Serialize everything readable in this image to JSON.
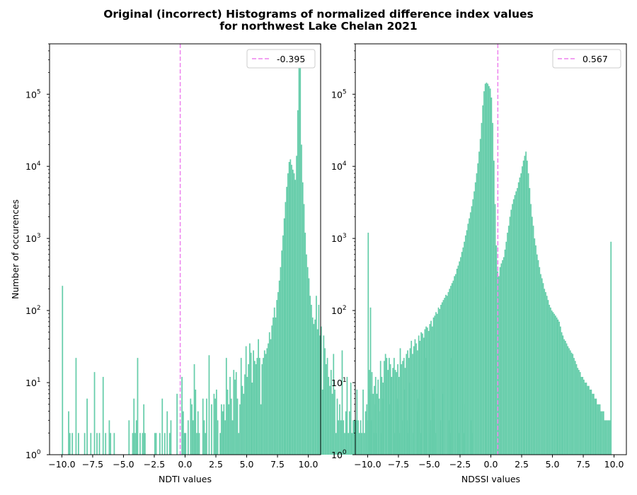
{
  "title_line1": "Original (incorrect) Histograms of normalized difference index values",
  "title_line2": "for northwest Lake Chelan 2021",
  "colors": {
    "bar": "#66cdaa",
    "mean_line": "#ee82ee",
    "axis": "#000000"
  },
  "chart_data": [
    {
      "type": "bar",
      "subtype": "histogram",
      "xlabel": "NDTI values",
      "ylabel": "Number of occurences",
      "xlim": [
        -11,
        11
      ],
      "ylim": [
        1,
        500000
      ],
      "yscale": "log",
      "xticks": [
        -10.0,
        -7.5,
        -5.0,
        -2.5,
        0.0,
        2.5,
        5.0,
        7.5,
        10.0
      ],
      "xtick_labels": [
        "−10.0",
        "−7.5",
        "−5.0",
        "−2.5",
        "0.0",
        "2.5",
        "5.0",
        "7.5",
        "10.0"
      ],
      "yticks": [
        1,
        10,
        100,
        1000,
        10000,
        100000
      ],
      "ytick_base": "10",
      "ytick_exponents": [
        "0",
        "1",
        "2",
        "3",
        "4",
        "5"
      ],
      "bin_width": 0.1,
      "bin_start": -10.0,
      "mean_line": {
        "x": -0.395,
        "label": "-0.395"
      },
      "legend_position": "upper right",
      "grid": false,
      "counts": [
        220,
        0,
        0,
        0,
        0,
        4,
        2,
        0,
        2,
        0,
        0,
        22,
        0,
        2,
        0,
        0,
        0,
        0,
        2,
        0,
        6,
        0,
        0,
        2,
        0,
        0,
        14,
        0,
        2,
        0,
        2,
        0,
        0,
        12,
        0,
        2,
        0,
        0,
        3,
        2,
        0,
        0,
        2,
        0,
        0,
        0,
        0,
        0,
        0,
        0,
        0,
        0,
        0,
        0,
        3,
        0,
        0,
        2,
        6,
        2,
        3,
        22,
        0,
        2,
        0,
        2,
        5,
        2,
        0,
        0,
        0,
        0,
        0,
        0,
        0,
        2,
        2,
        0,
        0,
        2,
        0,
        6,
        0,
        2,
        0,
        4,
        0,
        2,
        3,
        0,
        0,
        0,
        0,
        7,
        0,
        0,
        0,
        12,
        4,
        2,
        2,
        0,
        3,
        0,
        6,
        5,
        3,
        18,
        8,
        2,
        4,
        2,
        0,
        0,
        6,
        3,
        2,
        6,
        0,
        24,
        0,
        5,
        0,
        7,
        6,
        8,
        3,
        0,
        2,
        5,
        4,
        5,
        3,
        22,
        8,
        5,
        12,
        6,
        3,
        15,
        11,
        14,
        6,
        2,
        5,
        22,
        9,
        7,
        13,
        32,
        12,
        18,
        35,
        26,
        10,
        28,
        20,
        18,
        22,
        40,
        22,
        5,
        18,
        22,
        28,
        25,
        30,
        35,
        50,
        40,
        62,
        80,
        110,
        80,
        140,
        180,
        260,
        400,
        680,
        1100,
        1900,
        3200,
        5200,
        8000,
        11500,
        12500,
        10500,
        9000,
        8000,
        6500,
        14000,
        60000,
        320000,
        360000,
        20000,
        6000,
        3000,
        1200,
        600,
        400,
        280,
        160,
        120,
        80,
        65,
        75,
        160,
        55,
        120,
        45,
        60,
        8,
        45,
        30,
        18,
        22,
        12,
        9,
        15,
        7,
        25,
        8,
        2,
        6,
        3,
        5,
        3,
        28,
        3,
        2,
        4,
        12,
        2,
        4,
        10,
        2,
        3,
        3,
        3,
        8,
        3,
        2,
        3,
        2,
        8,
        2,
        4,
        5,
        3,
        8,
        110,
        3,
        0,
        2,
        5,
        2,
        0,
        6,
        0,
        2,
        6,
        6,
        0,
        0,
        0,
        2,
        5,
        3,
        0,
        3,
        2,
        0,
        6,
        5,
        2,
        0,
        3,
        0,
        8,
        0,
        3,
        2,
        10,
        0,
        0,
        2,
        0,
        0,
        4,
        6,
        0,
        2,
        8,
        0,
        0,
        22,
        2,
        0,
        2,
        3,
        0,
        8,
        6,
        2,
        0,
        0,
        0,
        3,
        0,
        7,
        0,
        0,
        0,
        0,
        3,
        2,
        22,
        0,
        0,
        2,
        0,
        0,
        2,
        0,
        0,
        0,
        2,
        5,
        0,
        0,
        0,
        0,
        3,
        2,
        0,
        0,
        0,
        0,
        0,
        0,
        0,
        0,
        0,
        0,
        215
      ]
    },
    {
      "type": "bar",
      "subtype": "histogram",
      "xlabel": "NDSSI values",
      "ylabel": "",
      "xlim": [
        -11,
        11
      ],
      "ylim": [
        1,
        500000
      ],
      "yscale": "log",
      "xticks": [
        -10.0,
        -7.5,
        -5.0,
        -2.5,
        0.0,
        2.5,
        5.0,
        7.5,
        10.0
      ],
      "xtick_labels": [
        "−10.0",
        "−7.5",
        "−5.0",
        "−2.5",
        "0.0",
        "2.5",
        "5.0",
        "7.5",
        "10.0"
      ],
      "yticks": [
        1,
        10,
        100,
        1000,
        10000,
        100000
      ],
      "ytick_base": "10",
      "ytick_exponents": [
        "0",
        "1",
        "2",
        "3",
        "4",
        "5"
      ],
      "bin_width": 0.1,
      "bin_start": -10.0,
      "mean_line": {
        "x": 0.567,
        "label": "0.567"
      },
      "legend_position": "upper right",
      "grid": false,
      "counts": [
        1200,
        15,
        7,
        14,
        7,
        9,
        12,
        7,
        11,
        4,
        20,
        12,
        10,
        20,
        25,
        22,
        15,
        22,
        18,
        12,
        16,
        22,
        15,
        14,
        18,
        12,
        30,
        18,
        20,
        22,
        16,
        25,
        28,
        22,
        30,
        38,
        25,
        32,
        40,
        35,
        28,
        45,
        38,
        50,
        48,
        42,
        55,
        60,
        58,
        52,
        65,
        72,
        60,
        80,
        85,
        95,
        90,
        110,
        105,
        120,
        130,
        140,
        150,
        165,
        160,
        180,
        200,
        220,
        240,
        260,
        300,
        320,
        380,
        420,
        480,
        550,
        650,
        750,
        900,
        1100,
        1300,
        1600,
        1900,
        2300,
        2800,
        3500,
        4500,
        6000,
        8000,
        11000,
        16000,
        24000,
        40000,
        70000,
        110000,
        140000,
        145000,
        140000,
        130000,
        120000,
        90000,
        40000,
        12000,
        3000,
        800,
        350,
        300,
        400,
        450,
        500,
        550,
        700,
        900,
        1200,
        1500,
        2000,
        2500,
        3000,
        3500,
        4000,
        4500,
        5000,
        6000,
        7000,
        8000,
        10000,
        12000,
        14000,
        16000,
        12000,
        8000,
        5000,
        3000,
        2000,
        1500,
        1000,
        800,
        600,
        500,
        400,
        320,
        280,
        240,
        200,
        180,
        160,
        140,
        120,
        110,
        100,
        95,
        90,
        85,
        80,
        75,
        70,
        60,
        50,
        45,
        40,
        38,
        35,
        32,
        30,
        28,
        26,
        25,
        22,
        20,
        18,
        16,
        15,
        14,
        12,
        12,
        11,
        10,
        10,
        9,
        9,
        8,
        8,
        7,
        7,
        6,
        6,
        5,
        5,
        5,
        4,
        4,
        4,
        3,
        3,
        3,
        3,
        3,
        900
      ]
    }
  ]
}
